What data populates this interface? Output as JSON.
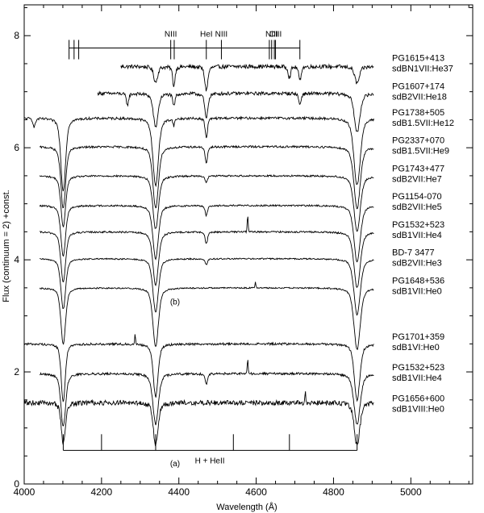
{
  "chart_data": {
    "type": "line",
    "xlabel": "Wavelength (Å)",
    "ylabel": "Flux (continuum = 2) +const.",
    "xlim": [
      4000,
      5160
    ],
    "ylim": [
      0,
      8.55
    ],
    "x_ticks": [
      4000,
      4200,
      4400,
      4600,
      4800,
      5000
    ],
    "y_ticks": [
      0,
      2,
      4,
      6,
      8
    ],
    "grid": false,
    "panel_labels": [
      {
        "text": "(b)",
        "x": 4390,
        "y": 3.2
      },
      {
        "text": "(a)",
        "x": 4390,
        "y": 0.32
      }
    ],
    "line_markers": {
      "top": {
        "bar_y": 7.78,
        "positions": [
          4116,
          4129,
          4141,
          4379,
          4388,
          4471,
          4510,
          4634,
          4640,
          4647,
          4650,
          4713
        ],
        "labels": [
          {
            "text": "NIII",
            "x": 4379
          },
          {
            "text": "HeI",
            "x": 4471
          },
          {
            "text": "NIII",
            "x": 4510
          },
          {
            "text": "NIII",
            "x": 4640
          },
          {
            "text": "CIII",
            "x": 4650
          }
        ]
      },
      "bottom": {
        "bar_y": 0.6,
        "positions": [
          4101,
          4200,
          4340,
          4541,
          4686,
          4861
        ],
        "label": "H + HeII",
        "label_x": 4480
      }
    },
    "series": [
      {
        "name": "PG1615+413",
        "subtype": "sdBN1VII:He37",
        "y0": 7.45,
        "label_y": 7.52,
        "xstart": 4250,
        "noise": 0.035,
        "lines": [
          [
            4101,
            0.1,
            3
          ],
          [
            4340,
            0.28,
            5
          ],
          [
            4387,
            0.35,
            3
          ],
          [
            4471,
            0.42,
            4
          ],
          [
            4026,
            0.2,
            3
          ],
          [
            4713,
            0.25,
            3
          ],
          [
            4686,
            0.2,
            3
          ],
          [
            4861,
            0.3,
            6
          ],
          [
            4922,
            0.18,
            3
          ],
          [
            4143,
            0.15,
            3
          ],
          [
            4921,
            0.15,
            3
          ]
        ]
      },
      {
        "name": "PG1607+174",
        "subtype": "sdB2VII:He18",
        "y0": 6.97,
        "label_y": 7.02,
        "xstart": 4190,
        "noise": 0.03,
        "lines": [
          [
            4340,
            0.6,
            6
          ],
          [
            4387,
            0.22,
            3
          ],
          [
            4471,
            0.45,
            4
          ],
          [
            4267,
            0.2,
            3
          ],
          [
            4713,
            0.2,
            3
          ],
          [
            4921,
            0.2,
            3
          ],
          [
            4861,
            0.7,
            7
          ]
        ]
      },
      {
        "name": "PG1738+505",
        "subtype": "sdB1.5VII:He12",
        "y0": 6.53,
        "label_y": 6.55,
        "xstart": 4000,
        "noise": 0.022,
        "lines": [
          [
            4101,
            1.3,
            6
          ],
          [
            4340,
            1.2,
            7
          ],
          [
            4471,
            0.35,
            3
          ],
          [
            4387,
            0.12,
            2
          ],
          [
            4861,
            1.2,
            8
          ],
          [
            4026,
            0.15,
            3
          ]
        ]
      },
      {
        "name": "PG2337+070",
        "subtype": "sdB1.5VII:He9",
        "y0": 6.02,
        "label_y": 6.05,
        "xstart": 4040,
        "noise": 0.018,
        "lines": [
          [
            4101,
            1.1,
            6
          ],
          [
            4340,
            1.1,
            7
          ],
          [
            4471,
            0.3,
            3
          ],
          [
            4861,
            1.1,
            8
          ]
        ]
      },
      {
        "name": "PG1743+477",
        "subtype": "sdB2VII:He7",
        "y0": 5.5,
        "label_y": 5.55,
        "xstart": 4040,
        "noise": 0.015,
        "lines": [
          [
            4101,
            0.9,
            6
          ],
          [
            4340,
            0.95,
            7
          ],
          [
            4471,
            0.12,
            3
          ],
          [
            4861,
            1.0,
            8
          ]
        ]
      },
      {
        "name": "PG1154-070",
        "subtype": "sdB2VII:He5",
        "y0": 4.97,
        "label_y": 5.05,
        "xstart": 4040,
        "noise": 0.015,
        "lines": [
          [
            4101,
            0.9,
            6
          ],
          [
            4340,
            0.95,
            7
          ],
          [
            4471,
            0.18,
            3
          ],
          [
            4861,
            1.0,
            8
          ]
        ]
      },
      {
        "name": "PG1532+523",
        "subtype": "sdB1VII:He4",
        "y0": 4.5,
        "label_y": 4.55,
        "xstart": 4040,
        "noise": 0.015,
        "lines": [
          [
            4101,
            0.9,
            6
          ],
          [
            4340,
            0.95,
            7
          ],
          [
            4471,
            0.22,
            3
          ],
          [
            4861,
            1.0,
            8
          ]
        ],
        "spikes": [
          [
            4578,
            0.3
          ]
        ]
      },
      {
        "name": "BD-7 3477",
        "subtype": "sdB2VII:He3",
        "y0": 4.02,
        "label_y": 4.05,
        "xstart": 4040,
        "noise": 0.012,
        "lines": [
          [
            4101,
            0.9,
            6
          ],
          [
            4340,
            0.95,
            7
          ],
          [
            4471,
            0.1,
            3
          ],
          [
            4861,
            1.0,
            8
          ]
        ]
      },
      {
        "name": "PG1648+536",
        "subtype": "sdB1VII:He0",
        "y0": 3.5,
        "label_y": 3.55,
        "xstart": 4040,
        "noise": 0.012,
        "lines": [
          [
            4101,
            1.0,
            6
          ],
          [
            4340,
            1.05,
            7
          ],
          [
            4861,
            1.1,
            8
          ]
        ],
        "spikes": [
          [
            4598,
            0.12
          ]
        ]
      },
      {
        "name": "PG1701+359",
        "subtype": "sdB1VI:He0",
        "y0": 2.5,
        "label_y": 2.55,
        "xstart": 4000,
        "noise": 0.02,
        "lines": [
          [
            4101,
            1.05,
            5
          ],
          [
            4340,
            0.95,
            6
          ],
          [
            4861,
            1.0,
            7
          ]
        ],
        "spikes": [
          [
            4287,
            0.18
          ]
        ]
      },
      {
        "name": "PG1532+523",
        "subtype": "sdB1VII:He4",
        "y0": 1.97,
        "label_y": 2.0,
        "xstart": 4040,
        "noise": 0.02,
        "lines": [
          [
            4101,
            0.95,
            6
          ],
          [
            4340,
            0.9,
            7
          ],
          [
            4471,
            0.2,
            3
          ],
          [
            4861,
            0.9,
            8
          ]
        ],
        "spikes": [
          [
            4578,
            0.25
          ]
        ]
      },
      {
        "name": "PG1656+600",
        "subtype": "sdB1VIII:He0",
        "y0": 1.45,
        "label_y": 1.45,
        "xstart": 4000,
        "noise": 0.045,
        "lines": [
          [
            4101,
            0.75,
            5
          ],
          [
            4340,
            0.75,
            6
          ],
          [
            4861,
            0.75,
            7
          ]
        ],
        "spikes": [
          [
            4727,
            0.18
          ]
        ]
      }
    ]
  }
}
